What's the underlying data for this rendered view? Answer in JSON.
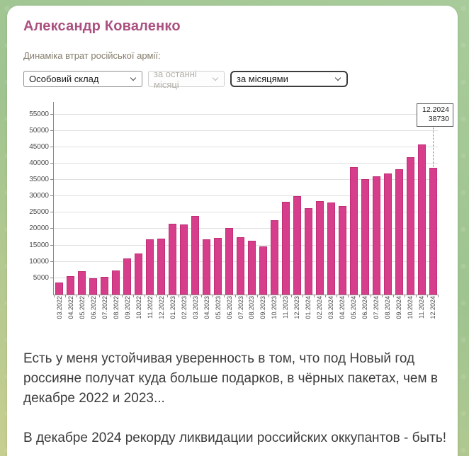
{
  "header": {
    "title": "Александр Коваленко",
    "subtitle": "Динаміка втрат російської армії:"
  },
  "controls": {
    "category": {
      "value": "Особовий склад"
    },
    "period": {
      "value": "за останні місяці",
      "disabled": true
    },
    "grouping": {
      "value": "за місяцями"
    }
  },
  "chart_data": {
    "type": "bar",
    "title": "",
    "xlabel": "",
    "ylabel": "",
    "ylim": [
      0,
      59000
    ],
    "yticks": [
      5000,
      10000,
      15000,
      20000,
      25000,
      30000,
      35000,
      40000,
      45000,
      50000,
      55000
    ],
    "grid": true,
    "bar_color": "#d63d8a",
    "categories": [
      "03.2022",
      "04.2022",
      "05.2022",
      "06.2022",
      "07.2022",
      "08.2022",
      "09.2022",
      "10.2022",
      "11.2022",
      "12.2022",
      "01.2023",
      "02.2023",
      "03.2023",
      "04.2023",
      "05.2023",
      "06.2023",
      "07.2023",
      "08.2023",
      "09.2023",
      "10.2023",
      "11.2023",
      "12.2023",
      "01.2024",
      "02.2024",
      "03.2024",
      "04.2024",
      "05.2024",
      "06.2024",
      "07.2024",
      "08.2024",
      "09.2024",
      "10.2024",
      "11.2024",
      "12.2024"
    ],
    "values": [
      3700,
      5600,
      7100,
      4900,
      5300,
      7400,
      11000,
      12600,
      16900,
      17000,
      21600,
      21400,
      24000,
      16900,
      17200,
      20400,
      17600,
      16500,
      14700,
      22800,
      28400,
      30000,
      26400,
      28600,
      28200,
      27000,
      38900,
      35300,
      36000,
      36900,
      38200,
      41900,
      45800,
      38730
    ],
    "annotation": {
      "label": "12.2024",
      "value": "38730",
      "target_index": 33
    }
  },
  "post": {
    "paragraph1": "Есть у меня устойчивая уверенность в том, что под Новый год россияне получат куда больше подарков, в чёрных пакетах, чем в декабре 2022 и 2023...",
    "paragraph2": "В декабре 2024 рекорду ликвидации российских оккупантов - быть!"
  }
}
